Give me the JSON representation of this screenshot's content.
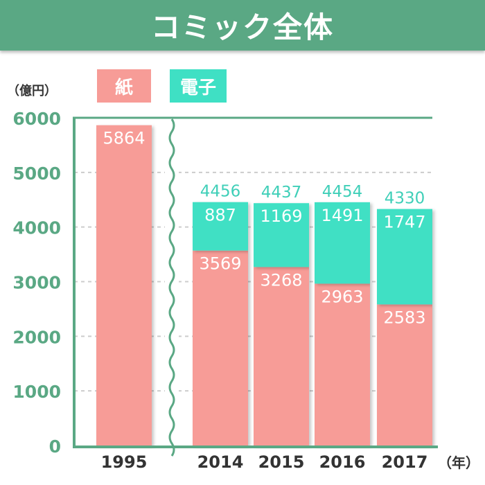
{
  "title": "コミック全体",
  "colors": {
    "paper": "#f79c97",
    "digital": "#3fe0c4",
    "accent": "#5aa884",
    "grid": "#cccccc",
    "total_label": "#3fcfb8"
  },
  "legend": [
    {
      "label": "紙",
      "color": "#f79c97"
    },
    {
      "label": "電子",
      "color": "#3fe0c4"
    }
  ],
  "chart_data": {
    "type": "bar",
    "stacked": true,
    "categories": [
      "1995",
      "2014",
      "2015",
      "2016",
      "2017"
    ],
    "series": [
      {
        "name": "紙",
        "values": [
          5864,
          3569,
          3268,
          2963,
          2583
        ]
      },
      {
        "name": "電子",
        "values": [
          0,
          887,
          1169,
          1491,
          1747
        ]
      }
    ],
    "totals": [
      null,
      4456,
      4437,
      4454,
      4330
    ],
    "ylabel": "（億円）",
    "xunit": "（年）",
    "ylim": [
      0,
      6000
    ],
    "yticks": [
      0,
      1000,
      2000,
      3000,
      4000,
      5000,
      6000
    ],
    "grid": true,
    "axis_break_after": "1995",
    "legend_position": "top-left"
  }
}
